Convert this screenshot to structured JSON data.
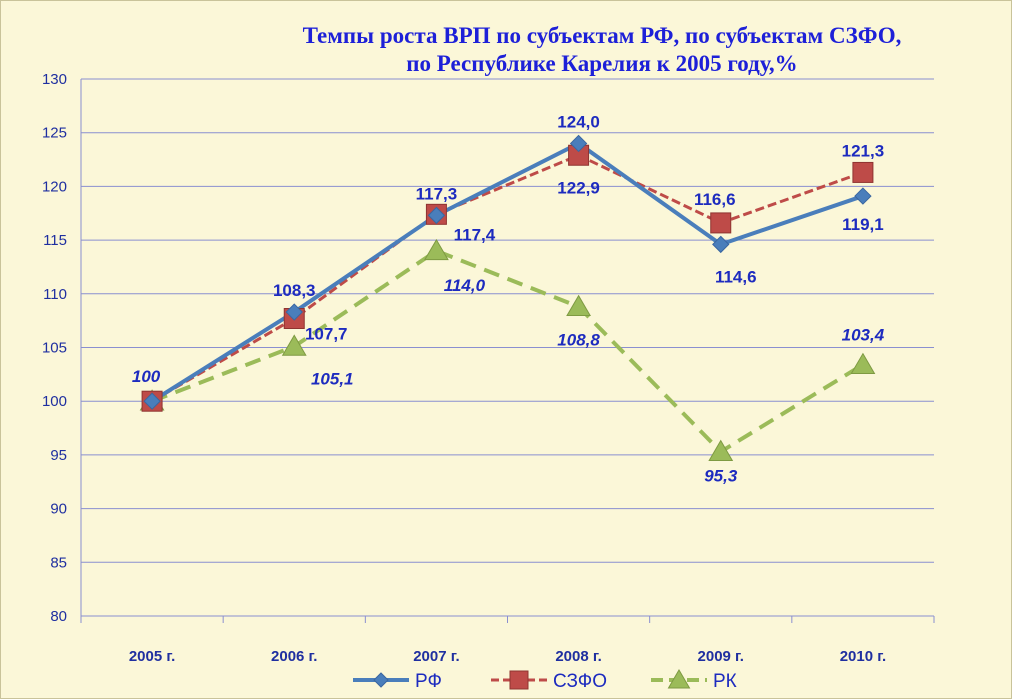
{
  "chart_data": {
    "type": "line",
    "title_lines": [
      "Темпы роста ВРП по субъектам РФ, по субъектам СЗФО,",
      "по Республике Карелия  к 2005 году,%"
    ],
    "categories": [
      "2005 г.",
      "2006 г.",
      "2007 г.",
      "2008 г.",
      "2009 г.",
      "2010 г."
    ],
    "ylim": [
      80,
      130
    ],
    "y_ticks": [
      80,
      85,
      90,
      95,
      100,
      105,
      110,
      115,
      120,
      125,
      130
    ],
    "grid": true,
    "legend_position": "bottom",
    "series": [
      {
        "name": "РФ",
        "values": [
          100,
          108.3,
          117.3,
          124.0,
          114.6,
          119.1
        ],
        "labels": [
          "",
          "108,3",
          "117,3",
          "124,0",
          "114,6",
          "119,1"
        ],
        "color": "#4a7ebb",
        "marker": "diamond",
        "dash": "solid"
      },
      {
        "name": "СЗФО",
        "values": [
          100,
          107.7,
          117.4,
          122.9,
          116.6,
          121.3
        ],
        "labels": [
          "",
          "107,7",
          "117,4",
          "122,9",
          "116,6",
          "121,3"
        ],
        "color": "#be4b48",
        "marker": "square",
        "dash": "dashed"
      },
      {
        "name": "РК",
        "values": [
          100,
          105.1,
          114.0,
          108.8,
          95.3,
          103.4
        ],
        "labels": [
          "100",
          "105,1",
          "114,0",
          "108,8",
          "95,3",
          "103,4"
        ],
        "color": "#9bbb59",
        "marker": "triangle",
        "dash": "dashed"
      }
    ]
  }
}
